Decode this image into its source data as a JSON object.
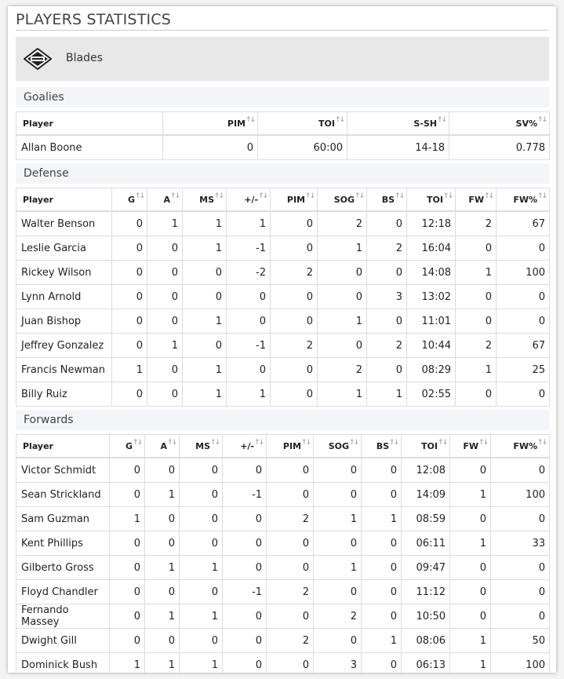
{
  "title": "PLAYERS STATISTICS",
  "team": {
    "name": "Blades",
    "logo_icon": "team-logo-icon"
  },
  "goalies": {
    "label": "Goalies",
    "headers": [
      "Player",
      "PIM",
      "TOI",
      "S-SH",
      "SV%"
    ],
    "rows": [
      [
        "Allan Boone",
        "0",
        "60:00",
        "14-18",
        "0.778"
      ]
    ]
  },
  "defense": {
    "label": "Defense",
    "headers": [
      "Player",
      "G",
      "A",
      "MS",
      "+/-",
      "PIM",
      "SOG",
      "BS",
      "TOI",
      "FW",
      "FW%"
    ],
    "rows": [
      [
        "Walter Benson",
        "0",
        "1",
        "1",
        "1",
        "0",
        "2",
        "0",
        "12:18",
        "2",
        "67"
      ],
      [
        "Leslie Garcia",
        "0",
        "0",
        "1",
        "-1",
        "0",
        "1",
        "2",
        "16:04",
        "0",
        "0"
      ],
      [
        "Rickey Wilson",
        "0",
        "0",
        "0",
        "-2",
        "2",
        "0",
        "0",
        "14:08",
        "1",
        "100"
      ],
      [
        "Lynn Arnold",
        "0",
        "0",
        "0",
        "0",
        "0",
        "0",
        "3",
        "13:02",
        "0",
        "0"
      ],
      [
        "Juan Bishop",
        "0",
        "0",
        "1",
        "0",
        "0",
        "1",
        "0",
        "11:01",
        "0",
        "0"
      ],
      [
        "Jeffrey Gonzalez",
        "0",
        "1",
        "0",
        "-1",
        "2",
        "0",
        "2",
        "10:44",
        "2",
        "67"
      ],
      [
        "Francis Newman",
        "1",
        "0",
        "1",
        "0",
        "0",
        "2",
        "0",
        "08:29",
        "1",
        "25"
      ],
      [
        "Billy Ruiz",
        "0",
        "0",
        "1",
        "1",
        "0",
        "1",
        "1",
        "02:55",
        "0",
        "0"
      ]
    ]
  },
  "forwards": {
    "label": "Forwards",
    "headers": [
      "Player",
      "G",
      "A",
      "MS",
      "+/-",
      "PIM",
      "SOG",
      "BS",
      "TOI",
      "FW",
      "FW%"
    ],
    "rows": [
      [
        "Victor Schmidt",
        "0",
        "0",
        "0",
        "0",
        "0",
        "0",
        "0",
        "12:08",
        "0",
        "0"
      ],
      [
        "Sean Strickland",
        "0",
        "1",
        "0",
        "-1",
        "0",
        "0",
        "0",
        "14:09",
        "1",
        "100"
      ],
      [
        "Sam Guzman",
        "1",
        "0",
        "0",
        "0",
        "2",
        "1",
        "1",
        "08:59",
        "0",
        "0"
      ],
      [
        "Kent Phillips",
        "0",
        "0",
        "0",
        "0",
        "0",
        "0",
        "0",
        "06:11",
        "1",
        "33"
      ],
      [
        "Gilberto Gross",
        "0",
        "1",
        "1",
        "0",
        "0",
        "1",
        "0",
        "09:47",
        "0",
        "0"
      ],
      [
        "Floyd Chandler",
        "0",
        "0",
        "0",
        "-1",
        "2",
        "0",
        "0",
        "11:12",
        "0",
        "0"
      ],
      [
        "Fernando Massey",
        "0",
        "1",
        "1",
        "0",
        "0",
        "2",
        "0",
        "10:50",
        "0",
        "0"
      ],
      [
        "Dwight Gill",
        "0",
        "0",
        "0",
        "0",
        "2",
        "0",
        "1",
        "08:06",
        "1",
        "50"
      ],
      [
        "Dominick Bush",
        "1",
        "1",
        "1",
        "0",
        "0",
        "3",
        "0",
        "06:13",
        "1",
        "100"
      ]
    ]
  }
}
